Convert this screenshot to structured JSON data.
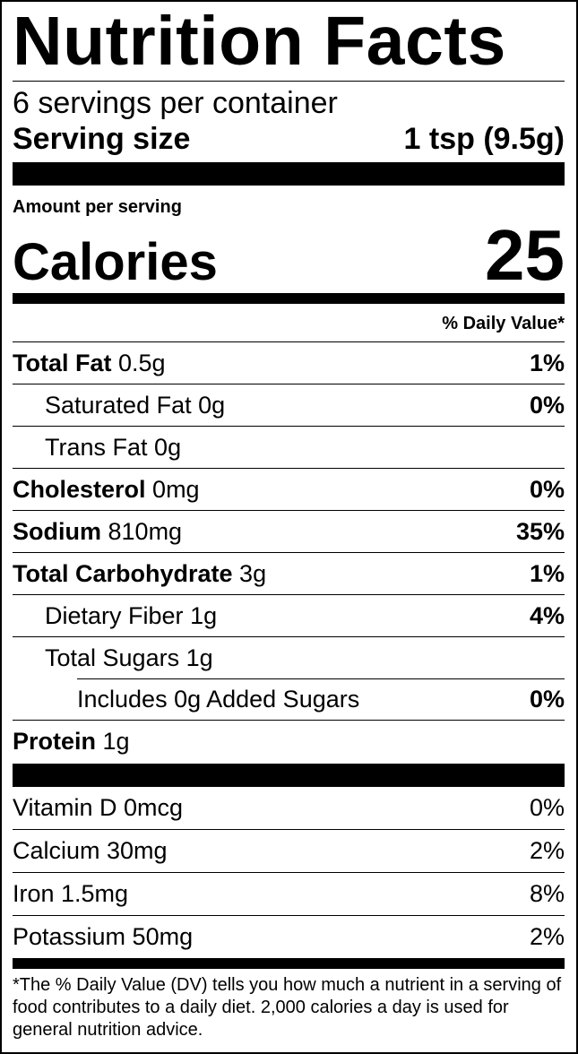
{
  "title": "Nutrition Facts",
  "servings_per_container": "6 servings per container",
  "serving_size": {
    "label": "Serving size",
    "value": "1 tsp (9.5g)"
  },
  "amount_per_serving": "Amount per serving",
  "calories": {
    "label": "Calories",
    "value": "25"
  },
  "daily_value_header": "% Daily Value*",
  "nutrients": [
    {
      "name": "Total Fat",
      "amount": "0.5g",
      "dv": "1%"
    },
    {
      "name": "Saturated Fat",
      "amount": "0g",
      "dv": "0%"
    },
    {
      "name": "Trans Fat",
      "amount": "0g",
      "dv": ""
    },
    {
      "name": "Cholesterol",
      "amount": "0mg",
      "dv": "0%"
    },
    {
      "name": "Sodium",
      "amount": "810mg",
      "dv": "35%"
    },
    {
      "name": "Total Carbohydrate",
      "amount": "3g",
      "dv": "1%"
    },
    {
      "name": "Dietary Fiber",
      "amount": "1g",
      "dv": "4%"
    },
    {
      "name": "Total Sugars",
      "amount": "1g",
      "dv": ""
    },
    {
      "name": "Includes 0g Added Sugars",
      "amount": "",
      "dv": "0%"
    },
    {
      "name": "Protein",
      "amount": "1g",
      "dv": ""
    }
  ],
  "vitamins": [
    {
      "text": "Vitamin D 0mcg",
      "dv": "0%"
    },
    {
      "text": "Calcium 30mg",
      "dv": "2%"
    },
    {
      "text": "Iron 1.5mg",
      "dv": "8%"
    },
    {
      "text": "Potassium 50mg",
      "dv": "2%"
    }
  ],
  "footnote": "*The % Daily Value (DV) tells you how much a nutrient in a serving of food contributes to a daily diet. 2,000 calories a day is used for general nutrition advice."
}
